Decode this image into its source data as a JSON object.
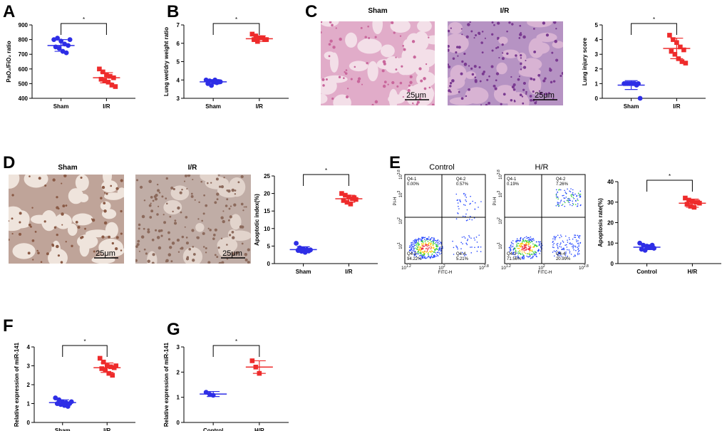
{
  "chart_data": [
    {
      "type": "strip",
      "panel": "A",
      "ylabel": "PaO₂/FiO₂ ratio",
      "categories": [
        "Sham",
        "I/R"
      ],
      "points": [
        [
          800,
          810,
          790,
          770,
          760,
          750,
          740,
          720,
          710,
          800
        ],
        [
          600,
          580,
          560,
          550,
          540,
          530,
          520,
          510,
          490,
          480
        ]
      ],
      "mean": [
        760,
        540
      ],
      "sd": [
        40,
        35
      ],
      "colors": [
        "#2e2ee6",
        "#ee2b2b"
      ],
      "markers": [
        "circle",
        "square"
      ],
      "significance": "*",
      "ylim": [
        400,
        900
      ],
      "yticks": [
        400,
        500,
        600,
        700,
        800,
        900
      ]
    },
    {
      "type": "strip",
      "panel": "B",
      "ylabel": "Lung wet/dry weight ratio",
      "categories": [
        "Sham",
        "I/R"
      ],
      "points": [
        [
          4.0,
          3.95,
          3.9,
          3.85,
          3.9,
          3.8,
          3.7,
          4.0,
          3.9
        ],
        [
          6.5,
          6.4,
          6.3,
          6.3,
          6.2,
          6.2,
          6.1,
          6.3,
          6.2
        ]
      ],
      "mean": [
        3.9,
        6.25
      ],
      "sd": [
        0.12,
        0.15
      ],
      "colors": [
        "#2e2ee6",
        "#ee2b2b"
      ],
      "markers": [
        "circle",
        "square"
      ],
      "significance": "*",
      "ylim": [
        3,
        7
      ],
      "yticks": [
        3,
        4,
        5,
        6,
        7
      ]
    },
    {
      "type": "strip",
      "ylabel": "Lung injury score",
      "categories": [
        "Sham",
        "I/R"
      ],
      "points": [
        [
          1,
          1,
          1,
          1,
          1,
          1,
          1,
          1,
          0.9,
          0
        ],
        [
          4.3,
          4.0,
          3.8,
          3.5,
          3.3,
          3.2,
          3.0,
          2.7,
          2.5,
          2.4
        ]
      ],
      "mean": [
        0.9,
        3.4
      ],
      "sd": [
        0.3,
        0.7
      ],
      "colors": [
        "#2e2ee6",
        "#ee2b2b"
      ],
      "markers": [
        "circle",
        "square"
      ],
      "significance": "*",
      "ylim": [
        0,
        5
      ],
      "yticks": [
        0,
        1,
        2,
        3,
        4,
        5
      ]
    },
    {
      "type": "strip",
      "ylabel": "Apoptotic index(%)",
      "categories": [
        "Sham",
        "I/R"
      ],
      "points": [
        [
          5.8,
          4.5,
          4.2,
          4,
          3.9,
          3.8,
          3.5,
          3.2,
          3.6
        ],
        [
          20,
          19.5,
          19,
          18.5,
          18.3,
          18,
          17.5,
          17,
          18.8
        ]
      ],
      "mean": [
        4,
        18.5
      ],
      "sd": [
        0.8,
        1
      ],
      "colors": [
        "#2e2ee6",
        "#ee2b2b"
      ],
      "markers": [
        "circle",
        "square"
      ],
      "significance": "*",
      "ylim": [
        0,
        25
      ],
      "yticks": [
        0,
        5,
        10,
        15,
        20,
        25
      ]
    },
    {
      "type": "strip",
      "ylabel": "Apoptosis rate(%)",
      "categories": [
        "Control",
        "H/R"
      ],
      "points": [
        [
          10,
          9,
          8.5,
          8,
          7.5,
          7,
          6.5,
          8,
          9
        ],
        [
          32,
          31,
          30.5,
          30,
          29.5,
          29,
          28,
          27.5,
          30
        ]
      ],
      "mean": [
        8,
        29.5
      ],
      "sd": [
        1.2,
        2
      ],
      "colors": [
        "#2e2ee6",
        "#ee2b2b"
      ],
      "markers": [
        "circle",
        "square"
      ],
      "significance": "*",
      "ylim": [
        0,
        40
      ],
      "yticks": [
        0,
        10,
        20,
        30,
        40
      ]
    },
    {
      "type": "strip",
      "panel": "F",
      "ylabel": "Relative expression of miR-141",
      "categories": [
        "Sham",
        "I/R"
      ],
      "points": [
        [
          1.3,
          1.2,
          1.1,
          1.05,
          1.0,
          1.0,
          0.95,
          0.9,
          0.85,
          1.1
        ],
        [
          3.4,
          3.2,
          3.0,
          2.95,
          2.9,
          2.85,
          2.8,
          2.6,
          2.5,
          3.0
        ]
      ],
      "mean": [
        1.05,
        2.9
      ],
      "sd": [
        0.15,
        0.25
      ],
      "colors": [
        "#2e2ee6",
        "#ee2b2b"
      ],
      "markers": [
        "circle",
        "square"
      ],
      "significance": "*",
      "ylim": [
        0,
        4
      ],
      "yticks": [
        0,
        1,
        2,
        3,
        4
      ]
    },
    {
      "type": "strip",
      "panel": "G",
      "ylabel": "Relative expression of miR-141",
      "categories": [
        "Control",
        "H/R"
      ],
      "points": [
        [
          1.2,
          1.12,
          1.08
        ],
        [
          2.45,
          2.2,
          1.95
        ]
      ],
      "mean": [
        1.13,
        2.2
      ],
      "sd": [
        0.1,
        0.25
      ],
      "colors": [
        "#2e2ee6",
        "#ee2b2b"
      ],
      "markers": [
        "circle",
        "square"
      ],
      "significance": "*",
      "ylim": [
        0,
        3
      ],
      "yticks": [
        0,
        1,
        2,
        3
      ]
    }
  ],
  "images": [
    {
      "panel": "C",
      "labels": [
        "Sham",
        "I/R"
      ],
      "scale_bars": [
        "25μm",
        "25μm"
      ]
    },
    {
      "panel": "D",
      "labels": [
        "Sham",
        "I/R"
      ],
      "scale_bars": [
        "25μm",
        "25μm"
      ]
    }
  ],
  "flow": {
    "panel": "E",
    "x_label": "FITC-H",
    "y_label": "PI-H",
    "xticks": [
      {
        "base": "10",
        "exp": "1.2"
      },
      {
        "base": "10",
        "exp": "2"
      },
      {
        "base": "10",
        "exp": "2.8"
      }
    ],
    "yticks": [
      {
        "base": "10",
        "exp": "1"
      },
      {
        "base": "10",
        "exp": "2"
      },
      {
        "base": "10",
        "exp": "3"
      },
      {
        "base": "10",
        "exp": "3.8"
      }
    ],
    "plots": [
      {
        "title": "Control",
        "quadrants": [
          {
            "name": "Q4-1",
            "pct": "0.00%"
          },
          {
            "name": "Q4-2",
            "pct": "0.57%"
          },
          {
            "name": "Q4-3",
            "pct": "94.22%"
          },
          {
            "name": "Q4-4",
            "pct": "5.21%"
          }
        ]
      },
      {
        "title": "H/R",
        "quadrants": [
          {
            "name": "Q4-1",
            "pct": "0.19%"
          },
          {
            "name": "Q4-2",
            "pct": "7.26%"
          },
          {
            "name": "Q4-3",
            "pct": "71.56%"
          },
          {
            "name": "Q4-4",
            "pct": "20.99%"
          }
        ]
      }
    ]
  }
}
